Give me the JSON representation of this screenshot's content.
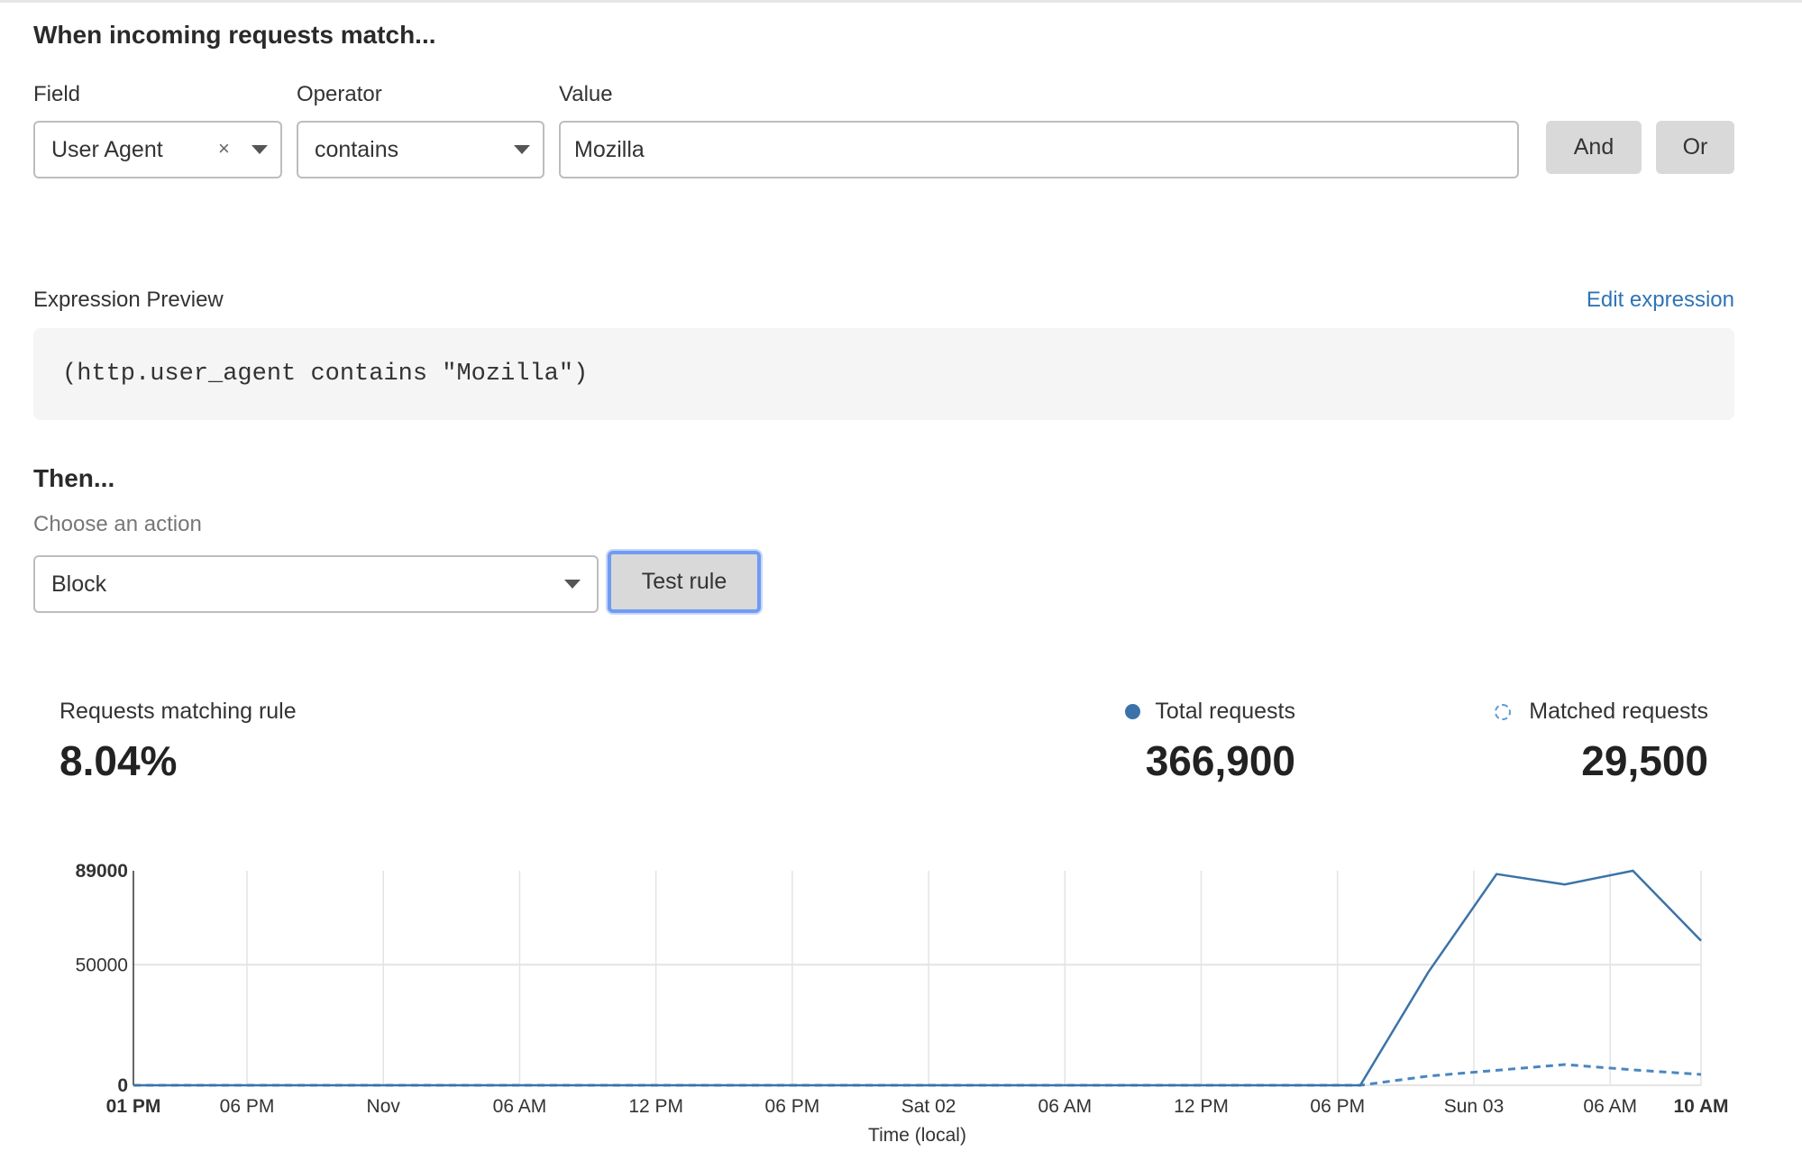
{
  "match": {
    "heading": "When incoming requests match...",
    "field_label": "Field",
    "operator_label": "Operator",
    "value_label": "Value",
    "field_value": "User Agent",
    "clear_glyph": "×",
    "operator_value": "contains",
    "value_input": "Mozilla",
    "and_label": "And",
    "or_label": "Or"
  },
  "expression": {
    "label": "Expression Preview",
    "edit_link": "Edit expression",
    "code": "(http.user_agent contains \"Mozilla\")"
  },
  "then": {
    "heading": "Then...",
    "action_label": "Choose an action",
    "action_value": "Block",
    "test_button": "Test rule"
  },
  "stats": {
    "matching_label": "Requests matching rule",
    "matching_value": "8.04%",
    "total_label": "Total requests",
    "total_value": "366,900",
    "matched_label": "Matched requests",
    "matched_value": "29,500"
  },
  "colors": {
    "accent": "#3b73a8",
    "link": "#2f74b5",
    "focus": "#6f9cf2"
  },
  "chart_data": {
    "type": "line",
    "xlabel": "Time (local)",
    "ylabel": "",
    "ylim": [
      0,
      89000
    ],
    "y_ticks": [
      "0",
      "50000",
      "89000"
    ],
    "x_ticks": [
      {
        "label": "01 PM",
        "t": "10-31T13:00",
        "bold": true
      },
      {
        "label": "06 PM",
        "t": "10-31T18:00"
      },
      {
        "label": "Nov",
        "t": "11-01T00:00"
      },
      {
        "label": "06 AM",
        "t": "11-01T06:00"
      },
      {
        "label": "12 PM",
        "t": "11-01T12:00"
      },
      {
        "label": "06 PM",
        "t": "11-01T18:00"
      },
      {
        "label": "Sat 02",
        "t": "11-02T00:00"
      },
      {
        "label": "06 AM",
        "t": "11-02T06:00"
      },
      {
        "label": "12 PM",
        "t": "11-02T12:00"
      },
      {
        "label": "06 PM",
        "t": "11-02T18:00"
      },
      {
        "label": "Sun 03",
        "t": "11-03T00:00"
      },
      {
        "label": "06 AM",
        "t": "11-03T06:00"
      },
      {
        "label": "10 AM",
        "t": "11-03T10:00",
        "bold": true
      }
    ],
    "x": [
      "10-31T13:00",
      "10-31T16:00",
      "10-31T19:00",
      "10-31T22:00",
      "11-01T01:00",
      "11-01T04:00",
      "11-01T07:00",
      "11-01T10:00",
      "11-01T13:00",
      "11-01T16:00",
      "11-01T19:00",
      "11-01T22:00",
      "11-02T01:00",
      "11-02T04:00",
      "11-02T07:00",
      "11-02T10:00",
      "11-02T13:00",
      "11-02T16:00",
      "11-02T19:00",
      "11-02T22:00",
      "11-03T01:00",
      "11-03T04:00",
      "11-03T07:00",
      "11-03T10:00"
    ],
    "series": [
      {
        "name": "Total requests",
        "style": "solid",
        "values": [
          0,
          0,
          0,
          0,
          0,
          0,
          0,
          0,
          0,
          0,
          0,
          0,
          0,
          0,
          0,
          0,
          0,
          0,
          0,
          47000,
          87600,
          83300,
          89000,
          60000
        ]
      },
      {
        "name": "Matched requests",
        "style": "dashed",
        "values": [
          0,
          0,
          0,
          0,
          0,
          0,
          0,
          0,
          0,
          0,
          0,
          0,
          0,
          0,
          0,
          0,
          0,
          0,
          0,
          3800,
          6200,
          8600,
          6400,
          4500
        ]
      }
    ],
    "grid": true,
    "legend": "top-right"
  }
}
